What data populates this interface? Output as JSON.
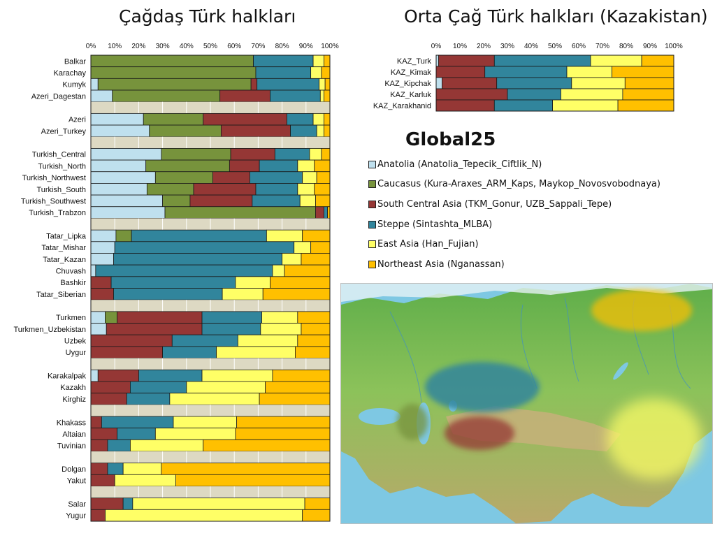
{
  "titles": {
    "modern": "Çağdaş Türk halkları",
    "medieval": "Orta Çağ Türk halkları (Kazakistan)"
  },
  "brand": "Global25",
  "colors": {
    "anatolia": "#bfe0ee",
    "caucasus": "#77933c",
    "sca": "#953735",
    "steppe": "#31859c",
    "eastasia": "#ffff66",
    "northeast": "#ffc000",
    "gap": "#ddd9c3"
  },
  "legend": [
    {
      "key": "anatolia",
      "label": "Anatolia (Anatolia_Tepecik_Ciftlik_N)"
    },
    {
      "key": "caucasus",
      "label": "Caucasus (Kura-Araxes_ARM_Kaps, Maykop_Novosvobodnaya)"
    },
    {
      "key": "sca",
      "label": "South Central Asia (TKM_Gonur, UZB_Sappali_Tepe)"
    },
    {
      "key": "steppe",
      "label": "Steppe (Sintashta_MLBA)"
    },
    {
      "key": "eastasia",
      "label": "East Asia (Han_Fujian)"
    },
    {
      "key": "northeast",
      "label": "Northeast Asia (Nganassan)"
    }
  ],
  "chart_data": [
    {
      "type": "bar",
      "orientation": "horizontal-stacked-100",
      "title": "Çağdaş Türk halkları",
      "x_ticks": [
        "0%",
        "10%",
        "20%",
        "30%",
        "40%",
        "50%",
        "60%",
        "70%",
        "80%",
        "90%",
        "100%"
      ],
      "series_keys": [
        "anatolia",
        "caucasus",
        "sca",
        "steppe",
        "eastasia",
        "northeast"
      ],
      "groups": [
        {
          "rows": [
            {
              "label": "Balkar",
              "values": [
                0,
                68,
                0,
                25,
                4.5,
                2.5
              ]
            },
            {
              "label": "Karachay",
              "values": [
                0,
                69,
                0,
                23,
                4.5,
                3.5
              ]
            },
            {
              "label": "Kumyk",
              "values": [
                3,
                64,
                2.5,
                26,
                2.5,
                2
              ]
            },
            {
              "label": "Azeri_Dagestan",
              "values": [
                9,
                45,
                21,
                21,
                1.5,
                2.5
              ]
            }
          ]
        },
        {
          "rows": [
            {
              "label": "Azeri",
              "values": [
                22,
                25,
                35,
                11,
                4.5,
                2.5
              ]
            },
            {
              "label": "Azeri_Turkey",
              "values": [
                24.5,
                30,
                29,
                11,
                3,
                2.5
              ]
            }
          ]
        },
        {
          "rows": [
            {
              "label": "Turkish_Central",
              "values": [
                29.5,
                29,
                18.5,
                14.5,
                5,
                3.5
              ]
            },
            {
              "label": "Turkish_North",
              "values": [
                23,
                35,
                12.5,
                16,
                7,
                6.5
              ]
            },
            {
              "label": "Turkish_Northwest",
              "values": [
                27,
                24,
                15.5,
                22,
                6,
                5.5
              ]
            },
            {
              "label": "Turkish_South",
              "values": [
                23.5,
                19.5,
                26,
                17.5,
                7,
                6.5
              ]
            },
            {
              "label": "Turkish_Southwest",
              "values": [
                30,
                11.5,
                26,
                20,
                6.5,
                6
              ]
            },
            {
              "label": "Turkish_Trabzon",
              "values": [
                31,
                63,
                3.5,
                1.5,
                0,
                1
              ]
            }
          ]
        },
        {
          "rows": [
            {
              "label": "Tatar_Lipka",
              "values": [
                10.5,
                6.5,
                0,
                56.5,
                15,
                11.5
              ]
            },
            {
              "label": "Tatar_Mishar",
              "values": [
                10,
                0,
                0,
                75,
                7,
                8
              ]
            },
            {
              "label": "Tatar_Kazan",
              "values": [
                9.5,
                0,
                0,
                70.5,
                8,
                12
              ]
            },
            {
              "label": "Chuvash",
              "values": [
                2,
                0,
                0,
                74,
                5,
                19
              ]
            },
            {
              "label": "Bashkir",
              "values": [
                0,
                0,
                8.5,
                52,
                14.5,
                25
              ]
            },
            {
              "label": "Tatar_Siberian",
              "values": [
                0,
                0,
                9.5,
                45.5,
                17,
                28
              ]
            }
          ]
        },
        {
          "rows": [
            {
              "label": "Turkmen",
              "values": [
                6,
                5,
                35.5,
                25,
                15,
                13.5
              ]
            },
            {
              "label": "Turkmen_Uzbekistan",
              "values": [
                6.5,
                0,
                40,
                24.5,
                17,
                12
              ]
            },
            {
              "label": "Uzbek",
              "values": [
                0,
                0,
                34,
                27.5,
                25,
                13.5
              ]
            },
            {
              "label": "Uygur",
              "values": [
                0,
                0,
                30,
                22.5,
                33,
                14.5
              ]
            }
          ]
        },
        {
          "rows": [
            {
              "label": "Karakalpak",
              "values": [
                3,
                0,
                17,
                26.5,
                29.5,
                24
              ]
            },
            {
              "label": "Kazakh",
              "values": [
                0,
                0,
                16.5,
                23.5,
                33,
                27
              ]
            },
            {
              "label": "Kirghiz",
              "values": [
                0,
                0,
                15,
                18,
                37.5,
                29.5
              ]
            }
          ]
        },
        {
          "rows": [
            {
              "label": "Khakass",
              "values": [
                0,
                0,
                4.5,
                30,
                26.5,
                39
              ]
            },
            {
              "label": "Altaian",
              "values": [
                0,
                0,
                11,
                16,
                33.5,
                39.5
              ]
            },
            {
              "label": "Tuvinian",
              "values": [
                0,
                0,
                7,
                9.5,
                30.5,
                53
              ]
            }
          ]
        },
        {
          "rows": [
            {
              "label": "Dolgan",
              "values": [
                0,
                0,
                7,
                6.5,
                16,
                70.5
              ]
            },
            {
              "label": "Yakut",
              "values": [
                0,
                0,
                10,
                0,
                25.5,
                64.5
              ]
            }
          ]
        },
        {
          "rows": [
            {
              "label": "Salar",
              "values": [
                0,
                0,
                13.5,
                4,
                72,
                10.5
              ]
            },
            {
              "label": "Yugur",
              "values": [
                0,
                0,
                6,
                0,
                82.5,
                11.5
              ]
            }
          ]
        }
      ]
    },
    {
      "type": "bar",
      "orientation": "horizontal-stacked-100",
      "title": "Orta Çağ Türk halkları (Kazakistan)",
      "x_ticks": [
        "0%",
        "10%",
        "20%",
        "30%",
        "40%",
        "50%",
        "60%",
        "70%",
        "80%",
        "90%",
        "100%"
      ],
      "series_keys": [
        "anatolia",
        "caucasus",
        "sca",
        "steppe",
        "eastasia",
        "northeast"
      ],
      "groups": [
        {
          "rows": [
            {
              "label": "KAZ_Turk",
              "values": [
                1,
                0,
                23.5,
                40.5,
                21.5,
                13.5
              ]
            },
            {
              "label": "KAZ_Kimak",
              "values": [
                0,
                0,
                20.5,
                34.5,
                19,
                26
              ]
            },
            {
              "label": "KAZ_Kipchak",
              "values": [
                2.5,
                0,
                23,
                31.5,
                22.5,
                20.5
              ]
            },
            {
              "label": "KAZ_Karluk",
              "values": [
                0,
                0,
                30,
                22.5,
                26,
                21.5
              ]
            },
            {
              "label": "KAZ_Karakhanid",
              "values": [
                0,
                0,
                24.5,
                24.5,
                27.5,
                23.5
              ]
            }
          ]
        }
      ]
    }
  ]
}
